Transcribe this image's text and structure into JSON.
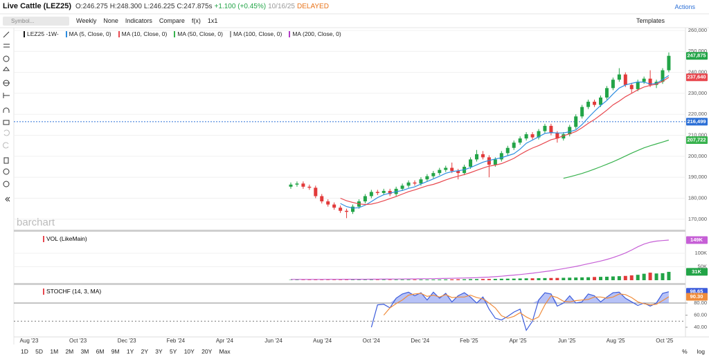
{
  "header": {
    "title": "Live Cattle (LEZ25)",
    "open": "O:246.275",
    "high": "H:248.300",
    "low": "L:246.225",
    "close": "C:247.875s",
    "change": "+1.100 (+0.45%)",
    "date": "10/16/25",
    "status": "DELAYED",
    "actions": "Actions"
  },
  "toolbar": {
    "search_placeholder": "Symbol...",
    "items": [
      "Weekly",
      "None",
      "Indicators",
      "Compare",
      "f(x)",
      "1x1"
    ],
    "templates": "Templates"
  },
  "legend": [
    {
      "label": "LEZ25 -1W-",
      "color": "#111111"
    },
    {
      "label": "MA (5, Close, 0)",
      "color": "#2b8ce0"
    },
    {
      "label": "MA (10, Close, 0)",
      "color": "#e8474e"
    },
    {
      "label": "MA (50, Close, 0)",
      "color": "#37b24d"
    },
    {
      "label": "MA (100, Close, 0)",
      "color": "#999999"
    },
    {
      "label": "MA (200, Close, 0)",
      "color": "#b13bc6"
    }
  ],
  "watermark": "barchart",
  "price_chart": {
    "type": "candlestick",
    "up_color": "#22a447",
    "down_color": "#e23a3a",
    "ylim": [
      165000,
      261300
    ],
    "yticks": [
      {
        "value": 170000,
        "label": "170,000"
      },
      {
        "value": 180000,
        "label": "180,000"
      },
      {
        "value": 190000,
        "label": "190,000"
      },
      {
        "value": 200000,
        "label": "200,000"
      },
      {
        "value": 210000,
        "label": "210,000"
      },
      {
        "value": 220000,
        "label": "220,000"
      },
      {
        "value": 230000,
        "label": "230,000"
      },
      {
        "value": 240000,
        "label": "240,000"
      },
      {
        "value": 250000,
        "label": "250,000"
      },
      {
        "value": 260000,
        "label": "260,000"
      }
    ],
    "candles": [
      [
        185500,
        187500,
        184500,
        186500
      ],
      [
        186500,
        188000,
        185500,
        187000
      ],
      [
        187000,
        188000,
        184500,
        185500
      ],
      [
        185500,
        186500,
        184000,
        185000
      ],
      [
        185000,
        186000,
        180000,
        181000
      ],
      [
        181000,
        182000,
        177500,
        178500
      ],
      [
        178500,
        179500,
        176000,
        177000
      ],
      [
        177000,
        178000,
        174500,
        175500
      ],
      [
        175500,
        176500,
        173000,
        174000
      ],
      [
        174000,
        175000,
        170500,
        173500
      ],
      [
        173500,
        177000,
        172500,
        176000
      ],
      [
        176000,
        179500,
        175000,
        178500
      ],
      [
        178500,
        182000,
        177500,
        181000
      ],
      [
        181000,
        184000,
        180000,
        183000
      ],
      [
        183000,
        184000,
        181500,
        182500
      ],
      [
        182500,
        184500,
        181500,
        183500
      ],
      [
        183500,
        184500,
        181000,
        182000
      ],
      [
        182000,
        185500,
        181000,
        184500
      ],
      [
        184500,
        187000,
        183500,
        186000
      ],
      [
        186000,
        188500,
        185000,
        187500
      ],
      [
        187500,
        188500,
        186000,
        187000
      ],
      [
        187000,
        190000,
        186000,
        189000
      ],
      [
        189000,
        191500,
        188000,
        190500
      ],
      [
        190500,
        193000,
        189500,
        192000
      ],
      [
        192000,
        194500,
        191000,
        193500
      ],
      [
        193500,
        195500,
        192500,
        194500
      ],
      [
        194500,
        197000,
        192000,
        193000
      ],
      [
        193000,
        194000,
        189000,
        192000
      ],
      [
        192000,
        196000,
        191000,
        195000
      ],
      [
        195000,
        199500,
        194000,
        198500
      ],
      [
        198500,
        203000,
        197500,
        201000
      ],
      [
        201000,
        202500,
        198500,
        199500
      ],
      [
        199500,
        200500,
        190000,
        196000
      ],
      [
        196000,
        199500,
        195000,
        198500
      ],
      [
        198500,
        202500,
        197500,
        201500
      ],
      [
        201500,
        205000,
        200500,
        204000
      ],
      [
        204000,
        207500,
        203000,
        206500
      ],
      [
        206500,
        209500,
        205500,
        208500
      ],
      [
        208500,
        211500,
        207500,
        210500
      ],
      [
        210500,
        211500,
        208000,
        209000
      ],
      [
        209000,
        213000,
        208000,
        212000
      ],
      [
        212000,
        215500,
        211000,
        214500
      ],
      [
        214500,
        215500,
        210000,
        211000
      ],
      [
        211000,
        212000,
        206500,
        208500
      ],
      [
        208500,
        211500,
        207500,
        210500
      ],
      [
        210500,
        215000,
        209500,
        214000
      ],
      [
        214000,
        220000,
        213000,
        219000
      ],
      [
        219000,
        224500,
        218000,
        223500
      ],
      [
        223500,
        227000,
        222500,
        226000
      ],
      [
        226000,
        227000,
        223500,
        224500
      ],
      [
        224500,
        229000,
        223500,
        228000
      ],
      [
        228000,
        233500,
        227000,
        232500
      ],
      [
        232500,
        237500,
        231500,
        236500
      ],
      [
        236500,
        242000,
        235500,
        239000
      ],
      [
        239000,
        240000,
        233000,
        234000
      ],
      [
        234000,
        235000,
        230000,
        232000
      ],
      [
        232000,
        236500,
        231000,
        235500
      ],
      [
        235500,
        238000,
        234500,
        237000
      ],
      [
        237000,
        241000,
        233000,
        234000
      ],
      [
        234000,
        236500,
        232500,
        235500
      ],
      [
        235500,
        242000,
        234500,
        241000
      ],
      [
        241000,
        249500,
        240000,
        247875
      ]
    ],
    "series": [
      {
        "name": "MA (5, Close, 0)",
        "color": "#2b8ce0",
        "values": [
          null,
          null,
          null,
          null,
          null,
          null,
          null,
          null,
          177500,
          176000,
          175300,
          175500,
          176700,
          178400,
          180300,
          181700,
          182400,
          183100,
          183700,
          184700,
          185400,
          186800,
          188000,
          189200,
          190500,
          191900,
          192700,
          193100,
          193600,
          194600,
          195900,
          197200,
          198000,
          198700,
          199300,
          200300,
          201200,
          203400,
          206200,
          207700,
          209300,
          210900,
          211300,
          211100,
          211100,
          211700,
          212600,
          215100,
          218400,
          221400,
          224200,
          226600,
          229700,
          232500,
          234000,
          234800,
          235400,
          235300,
          234500,
          234700,
          236600,
          238500
        ]
      },
      {
        "name": "MA (10, Close, 0)",
        "color": "#e8474e",
        "values": [
          null,
          null,
          null,
          null,
          null,
          null,
          null,
          null,
          180000,
          178800,
          178000,
          177300,
          177000,
          177200,
          177900,
          178800,
          179800,
          180800,
          182000,
          183100,
          184000,
          185000,
          185900,
          186600,
          187600,
          188700,
          189700,
          190500,
          191300,
          192200,
          193300,
          194400,
          195300,
          195800,
          196500,
          197700,
          199000,
          200800,
          202500,
          203900,
          205100,
          206500,
          207900,
          208600,
          209800,
          210700,
          211800,
          213600,
          215700,
          217500,
          219700,
          222000,
          224500,
          226300,
          228400,
          230000,
          231700,
          233000,
          233800,
          234400,
          235700,
          237640
        ]
      },
      {
        "name": "MA (50, Close, 0)",
        "color": "#37b24d",
        "values": [
          null,
          null,
          null,
          null,
          null,
          null,
          null,
          null,
          null,
          null,
          null,
          null,
          null,
          null,
          null,
          null,
          null,
          null,
          null,
          null,
          null,
          null,
          null,
          null,
          null,
          null,
          null,
          null,
          null,
          null,
          null,
          null,
          null,
          null,
          null,
          null,
          null,
          null,
          null,
          null,
          null,
          null,
          null,
          null,
          189500,
          190200,
          191000,
          191800,
          192800,
          193900,
          195000,
          196200,
          197400,
          198700,
          200100,
          201500,
          202800,
          204000,
          205000,
          205900,
          206800,
          207722
        ]
      }
    ],
    "reference_line": {
      "value": 216499,
      "label": "216,499",
      "color": "#2b6fd6"
    },
    "price_tags": [
      {
        "value": 247875,
        "label": "247,875",
        "color": "#22a447"
      },
      {
        "value": 237640,
        "label": "237,640",
        "color": "#e8474e"
      },
      {
        "value": 207722,
        "label": "207,722",
        "color": "#37b24d"
      }
    ]
  },
  "volume_chart": {
    "type": "bar",
    "label": "VOL (LikeMain)",
    "ylim": [
      0,
      172000
    ],
    "yticks": [
      {
        "value": 50000,
        "label": "50K"
      },
      {
        "value": 100000,
        "label": "100K"
      }
    ],
    "values": [
      1200,
      1300,
      1200,
      1400,
      1500,
      1300,
      1400,
      1500,
      1600,
      1500,
      1600,
      1700,
      1600,
      1800,
      1700,
      1900,
      1800,
      2000,
      2100,
      2000,
      2200,
      2300,
      2200,
      2400,
      2500,
      3000,
      3200,
      3500,
      3600,
      4000,
      4200,
      4500,
      4800,
      5000,
      5500,
      5800,
      6000,
      6500,
      7000,
      7200,
      7500,
      8000,
      8200,
      8500,
      9000,
      9500,
      10000,
      10500,
      11000,
      12000,
      12500,
      13000,
      14000,
      15000,
      16000,
      18000,
      20000,
      24000,
      28000,
      25000,
      26000,
      31000
    ],
    "line": {
      "color": "#c65fd6",
      "values": [
        3000,
        3000,
        3100,
        3100,
        3200,
        3200,
        3300,
        3300,
        3400,
        3500,
        3500,
        3600,
        3700,
        3800,
        3900,
        4000,
        4200,
        4400,
        4600,
        4800,
        5000,
        5300,
        5600,
        6000,
        6400,
        6800,
        7200,
        7700,
        8200,
        8800,
        9500,
        10500,
        11500,
        13000,
        15000,
        17000,
        19000,
        21000,
        23500,
        26000,
        29000,
        32000,
        35000,
        39000,
        43000,
        47000,
        51000,
        56000,
        61000,
        66000,
        71000,
        77000,
        84000,
        92000,
        101000,
        112000,
        124000,
        134000,
        141000,
        145000,
        147000,
        149000
      ]
    },
    "tags": [
      {
        "value": 149000,
        "label": "149K",
        "color": "#c65fd6"
      },
      {
        "value": 31000,
        "label": "31K",
        "color": "#22a447"
      }
    ]
  },
  "stoch_chart": {
    "type": "line",
    "label": "STOCHF (14, 3, MA)",
    "ylim": [
      26.3,
      106.3
    ],
    "yticks": [
      {
        "value": 40,
        "label": "40.00"
      },
      {
        "value": 60,
        "label": "60.00"
      },
      {
        "value": 80,
        "label": "80.00"
      }
    ],
    "levels": [
      80,
      50
    ],
    "series": [
      {
        "name": "%K",
        "color": "#3b5bdb",
        "values": [
          null,
          null,
          null,
          null,
          null,
          null,
          null,
          null,
          null,
          null,
          null,
          null,
          null,
          40,
          77,
          78,
          72,
          88,
          95,
          98,
          92,
          97,
          85,
          98,
          88,
          96,
          82,
          92,
          97,
          90,
          80,
          90,
          70,
          55,
          52,
          58,
          65,
          70,
          35,
          50,
          85,
          97,
          95,
          75,
          80,
          92,
          80,
          82,
          95,
          92,
          82,
          90,
          97,
          98,
          88,
          82,
          76,
          80,
          75,
          80,
          96,
          98.65
        ]
      },
      {
        "name": "%D",
        "color": "#f08c3b",
        "values": [
          null,
          null,
          null,
          null,
          null,
          null,
          null,
          null,
          null,
          null,
          null,
          null,
          null,
          null,
          null,
          60,
          72,
          79,
          85,
          93,
          95,
          96,
          91,
          93,
          90,
          94,
          89,
          90,
          90,
          93,
          89,
          87,
          80,
          72,
          59,
          55,
          58,
          64,
          57,
          52,
          57,
          77,
          92,
          89,
          83,
          82,
          84,
          85,
          86,
          90,
          90,
          88,
          90,
          95,
          94,
          89,
          82,
          79,
          77,
          78,
          84,
          90.3
        ]
      }
    ],
    "tags": [
      {
        "value": 98.65,
        "label": "98.65",
        "color": "#3b5bdb"
      },
      {
        "value": 90.3,
        "label": "90.30",
        "color": "#f08c3b"
      }
    ]
  },
  "time_axis": [
    "Aug '23",
    "Oct '23",
    "Dec '23",
    "Feb '24",
    "Apr '24",
    "Jun '24",
    "Aug '24",
    "Oct '24",
    "Dec '24",
    "Feb '25",
    "Apr '25",
    "Jun '25",
    "Aug '25",
    "Oct '25"
  ],
  "range_buttons": [
    "1D",
    "5D",
    "1M",
    "2M",
    "3M",
    "6M",
    "9M",
    "1Y",
    "2Y",
    "3Y",
    "5Y",
    "10Y",
    "20Y",
    "Max"
  ],
  "scale_buttons": [
    "%",
    "log"
  ]
}
